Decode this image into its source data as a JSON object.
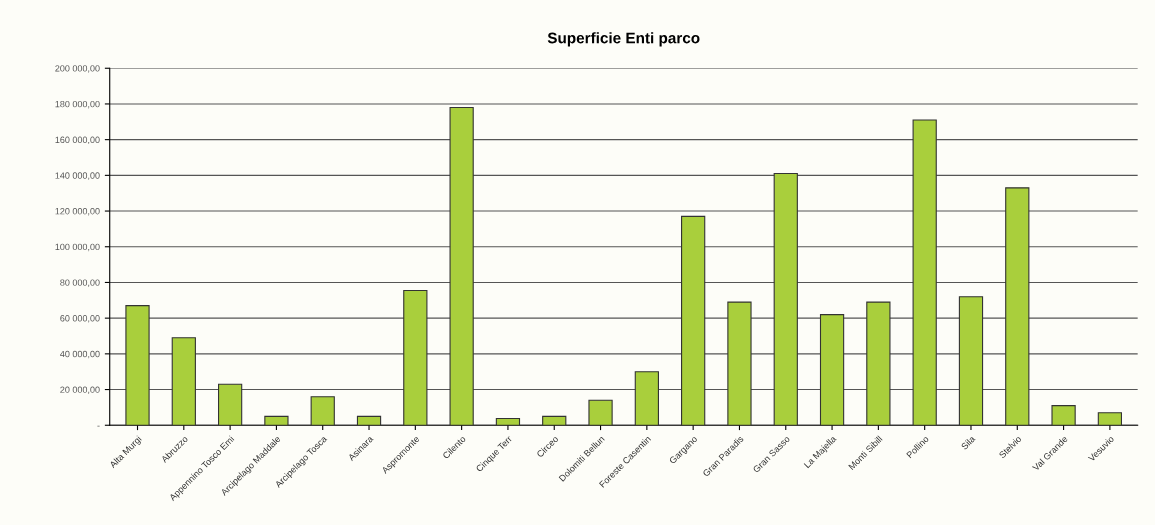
{
  "chart_data": {
    "type": "bar",
    "title": "Superficie Enti parco",
    "categories": [
      "Alta Murgi",
      "Abruzzo",
      "Appennino Tosco Emi",
      "Arcipelago Maddale",
      "Arcipelago Tosca",
      "Asinara",
      "Aspromonte",
      "Cilento",
      "Cinque Terr",
      "Circeo",
      "Dolomiti Bellun",
      "Foreste Casentin",
      "Gargano",
      "Gran Paradis",
      "Gran Sasso",
      "La Majella",
      "Monti Sibill",
      "Pollino",
      "Sila",
      "Stelvio",
      "Val Grande",
      "Vesuvio"
    ],
    "values": [
      67000,
      49000,
      23000,
      5000,
      16000,
      5000,
      75500,
      178000,
      3800,
      5000,
      14000,
      30000,
      117000,
      69000,
      141000,
      62000,
      69000,
      171000,
      72000,
      133000,
      11000,
      7000
    ],
    "color": "#a9cf3c",
    "ylim": [
      0,
      200000
    ],
    "yticks": [
      {
        "value": 0,
        "label": "-"
      },
      {
        "value": 20000,
        "label": "20 000,00"
      },
      {
        "value": 40000,
        "label": "40 000,00"
      },
      {
        "value": 60000,
        "label": "60 000,00"
      },
      {
        "value": 80000,
        "label": "80 000,00"
      },
      {
        "value": 100000,
        "label": "100 000,00"
      },
      {
        "value": 120000,
        "label": "120 000,00"
      },
      {
        "value": 140000,
        "label": "140 000,00"
      },
      {
        "value": 160000,
        "label": "160 000,00"
      },
      {
        "value": 180000,
        "label": "180 000,00"
      },
      {
        "value": 200000,
        "label": "200 000,00"
      }
    ],
    "grid": "y",
    "legend": false
  }
}
